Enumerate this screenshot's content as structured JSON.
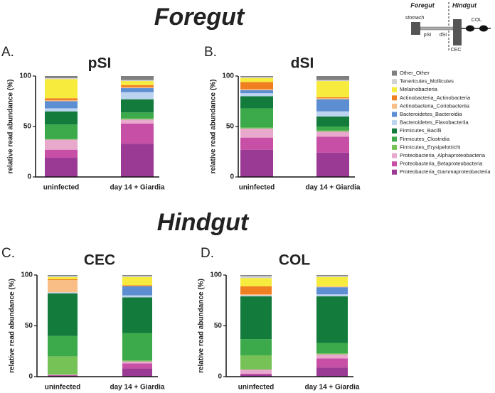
{
  "sections": [
    "Foregut",
    "Hindgut"
  ],
  "diagram": {
    "foregut": "Foregut",
    "hindgut": "Hindgut",
    "stomach": "stomach",
    "psi": "pSI",
    "dsi": "dSI",
    "cec": "CEC",
    "col": "COL"
  },
  "legend": [
    {
      "name": "Other_Other",
      "color": "#7f7f7f"
    },
    {
      "name": "Tenericutes_Mollicutes",
      "color": "#d3d3d3"
    },
    {
      "name": "Melainobacteria",
      "color": "#f7ec3d"
    },
    {
      "name": "Actinobacteria_Actinobacteria",
      "color": "#f07f22"
    },
    {
      "name": "Actinobacteria_Coriobacteriia",
      "color": "#f9bd86"
    },
    {
      "name": "Bacteroidetes_Bacteroidia",
      "color": "#5d8ed2"
    },
    {
      "name": "Bacteroidetes_Flavobacteriia",
      "color": "#bcd4ef"
    },
    {
      "name": "Firmicutes_Bacilli",
      "color": "#137b3c"
    },
    {
      "name": "Firmicutes_Clostridia",
      "color": "#3caa4b"
    },
    {
      "name": "Firmicutes_Erysipelotrichi",
      "color": "#76c257"
    },
    {
      "name": "Proteobacteria_Alphaproteobacteria",
      "color": "#e9a9cd"
    },
    {
      "name": "Proteobacteria_Betaproteobacteria",
      "color": "#c84fa6"
    },
    {
      "name": "Proteobacteria_Gammaproteobacteria",
      "color": "#9b3a94"
    }
  ],
  "chart_data": [
    {
      "type": "bar",
      "stacked": true,
      "panel": "A.",
      "title": "pSI",
      "ylabel": "relative read abundance (%)",
      "categories": [
        "uninfected",
        "day 14 + Giardia"
      ],
      "ylim": [
        0,
        100
      ],
      "yticks": [
        0,
        50,
        100
      ],
      "series": [
        {
          "values": [
            2,
            4
          ]
        },
        {
          "values": [
            1,
            1
          ]
        },
        {
          "values": [
            19,
            4
          ]
        },
        {
          "values": [
            2,
            2
          ]
        },
        {
          "values": [
            1,
            1
          ]
        },
        {
          "values": [
            7,
            4
          ]
        },
        {
          "values": [
            3,
            7
          ]
        },
        {
          "values": [
            13,
            13
          ]
        },
        {
          "values": [
            14.5,
            6
          ]
        },
        {
          "values": [
            0.5,
            1
          ]
        },
        {
          "values": [
            10,
            4
          ]
        },
        {
          "values": [
            8,
            20
          ]
        },
        {
          "values": [
            19,
            33
          ]
        }
      ]
    },
    {
      "type": "bar",
      "stacked": true,
      "panel": "B.",
      "title": "dSI",
      "ylabel": "relative read abundance (%)",
      "categories": [
        "uninfected",
        "day 14 + Giardia"
      ],
      "ylim": [
        0,
        100
      ],
      "yticks": [
        0,
        50,
        100
      ],
      "series": [
        {
          "values": [
            1,
            4
          ]
        },
        {
          "values": [
            1,
            1
          ]
        },
        {
          "values": [
            4,
            16
          ]
        },
        {
          "values": [
            7,
            1
          ]
        },
        {
          "values": [
            1,
            1
          ]
        },
        {
          "values": [
            3,
            12
          ]
        },
        {
          "values": [
            3,
            5
          ]
        },
        {
          "values": [
            12,
            10
          ]
        },
        {
          "values": [
            19,
            4
          ]
        },
        {
          "values": [
            1,
            1
          ]
        },
        {
          "values": [
            9,
            5
          ]
        },
        {
          "values": [
            12,
            16
          ]
        },
        {
          "values": [
            27,
            24
          ]
        }
      ]
    },
    {
      "type": "bar",
      "stacked": true,
      "panel": "C.",
      "title": "CEC",
      "ylabel": "relative read abundance (%)",
      "categories": [
        "uninfected",
        "day 14 + Giardia"
      ],
      "ylim": [
        0,
        100
      ],
      "yticks": [
        0,
        50,
        100
      ],
      "series": [
        {
          "values": [
            1,
            1
          ]
        },
        {
          "values": [
            1,
            1
          ]
        },
        {
          "values": [
            2,
            8
          ]
        },
        {
          "values": [
            1,
            1
          ]
        },
        {
          "values": [
            12,
            0
          ]
        },
        {
          "values": [
            0,
            9
          ]
        },
        {
          "values": [
            1,
            2
          ]
        },
        {
          "values": [
            42,
            35
          ]
        },
        {
          "values": [
            20,
            27
          ]
        },
        {
          "values": [
            18,
            1
          ]
        },
        {
          "values": [
            0.5,
            2
          ]
        },
        {
          "values": [
            0.5,
            5
          ]
        },
        {
          "values": [
            1,
            8
          ]
        }
      ]
    },
    {
      "type": "bar",
      "stacked": true,
      "panel": "D.",
      "title": "COL",
      "ylabel": "relative read abundance (%)",
      "categories": [
        "uninfected",
        "day 14 + Giardia"
      ],
      "ylim": [
        0,
        100
      ],
      "yticks": [
        0,
        50,
        100
      ],
      "series": [
        {
          "values": [
            1,
            1
          ]
        },
        {
          "values": [
            2,
            1
          ]
        },
        {
          "values": [
            8,
            9
          ]
        },
        {
          "values": [
            8,
            0
          ]
        },
        {
          "values": [
            1,
            1
          ]
        },
        {
          "values": [
            0,
            7
          ]
        },
        {
          "values": [
            1,
            2
          ]
        },
        {
          "values": [
            42,
            46
          ]
        },
        {
          "values": [
            16,
            10
          ]
        },
        {
          "values": [
            14,
            1
          ]
        },
        {
          "values": [
            4,
            4
          ]
        },
        {
          "values": [
            1,
            9
          ]
        },
        {
          "values": [
            2,
            9
          ]
        }
      ]
    }
  ]
}
